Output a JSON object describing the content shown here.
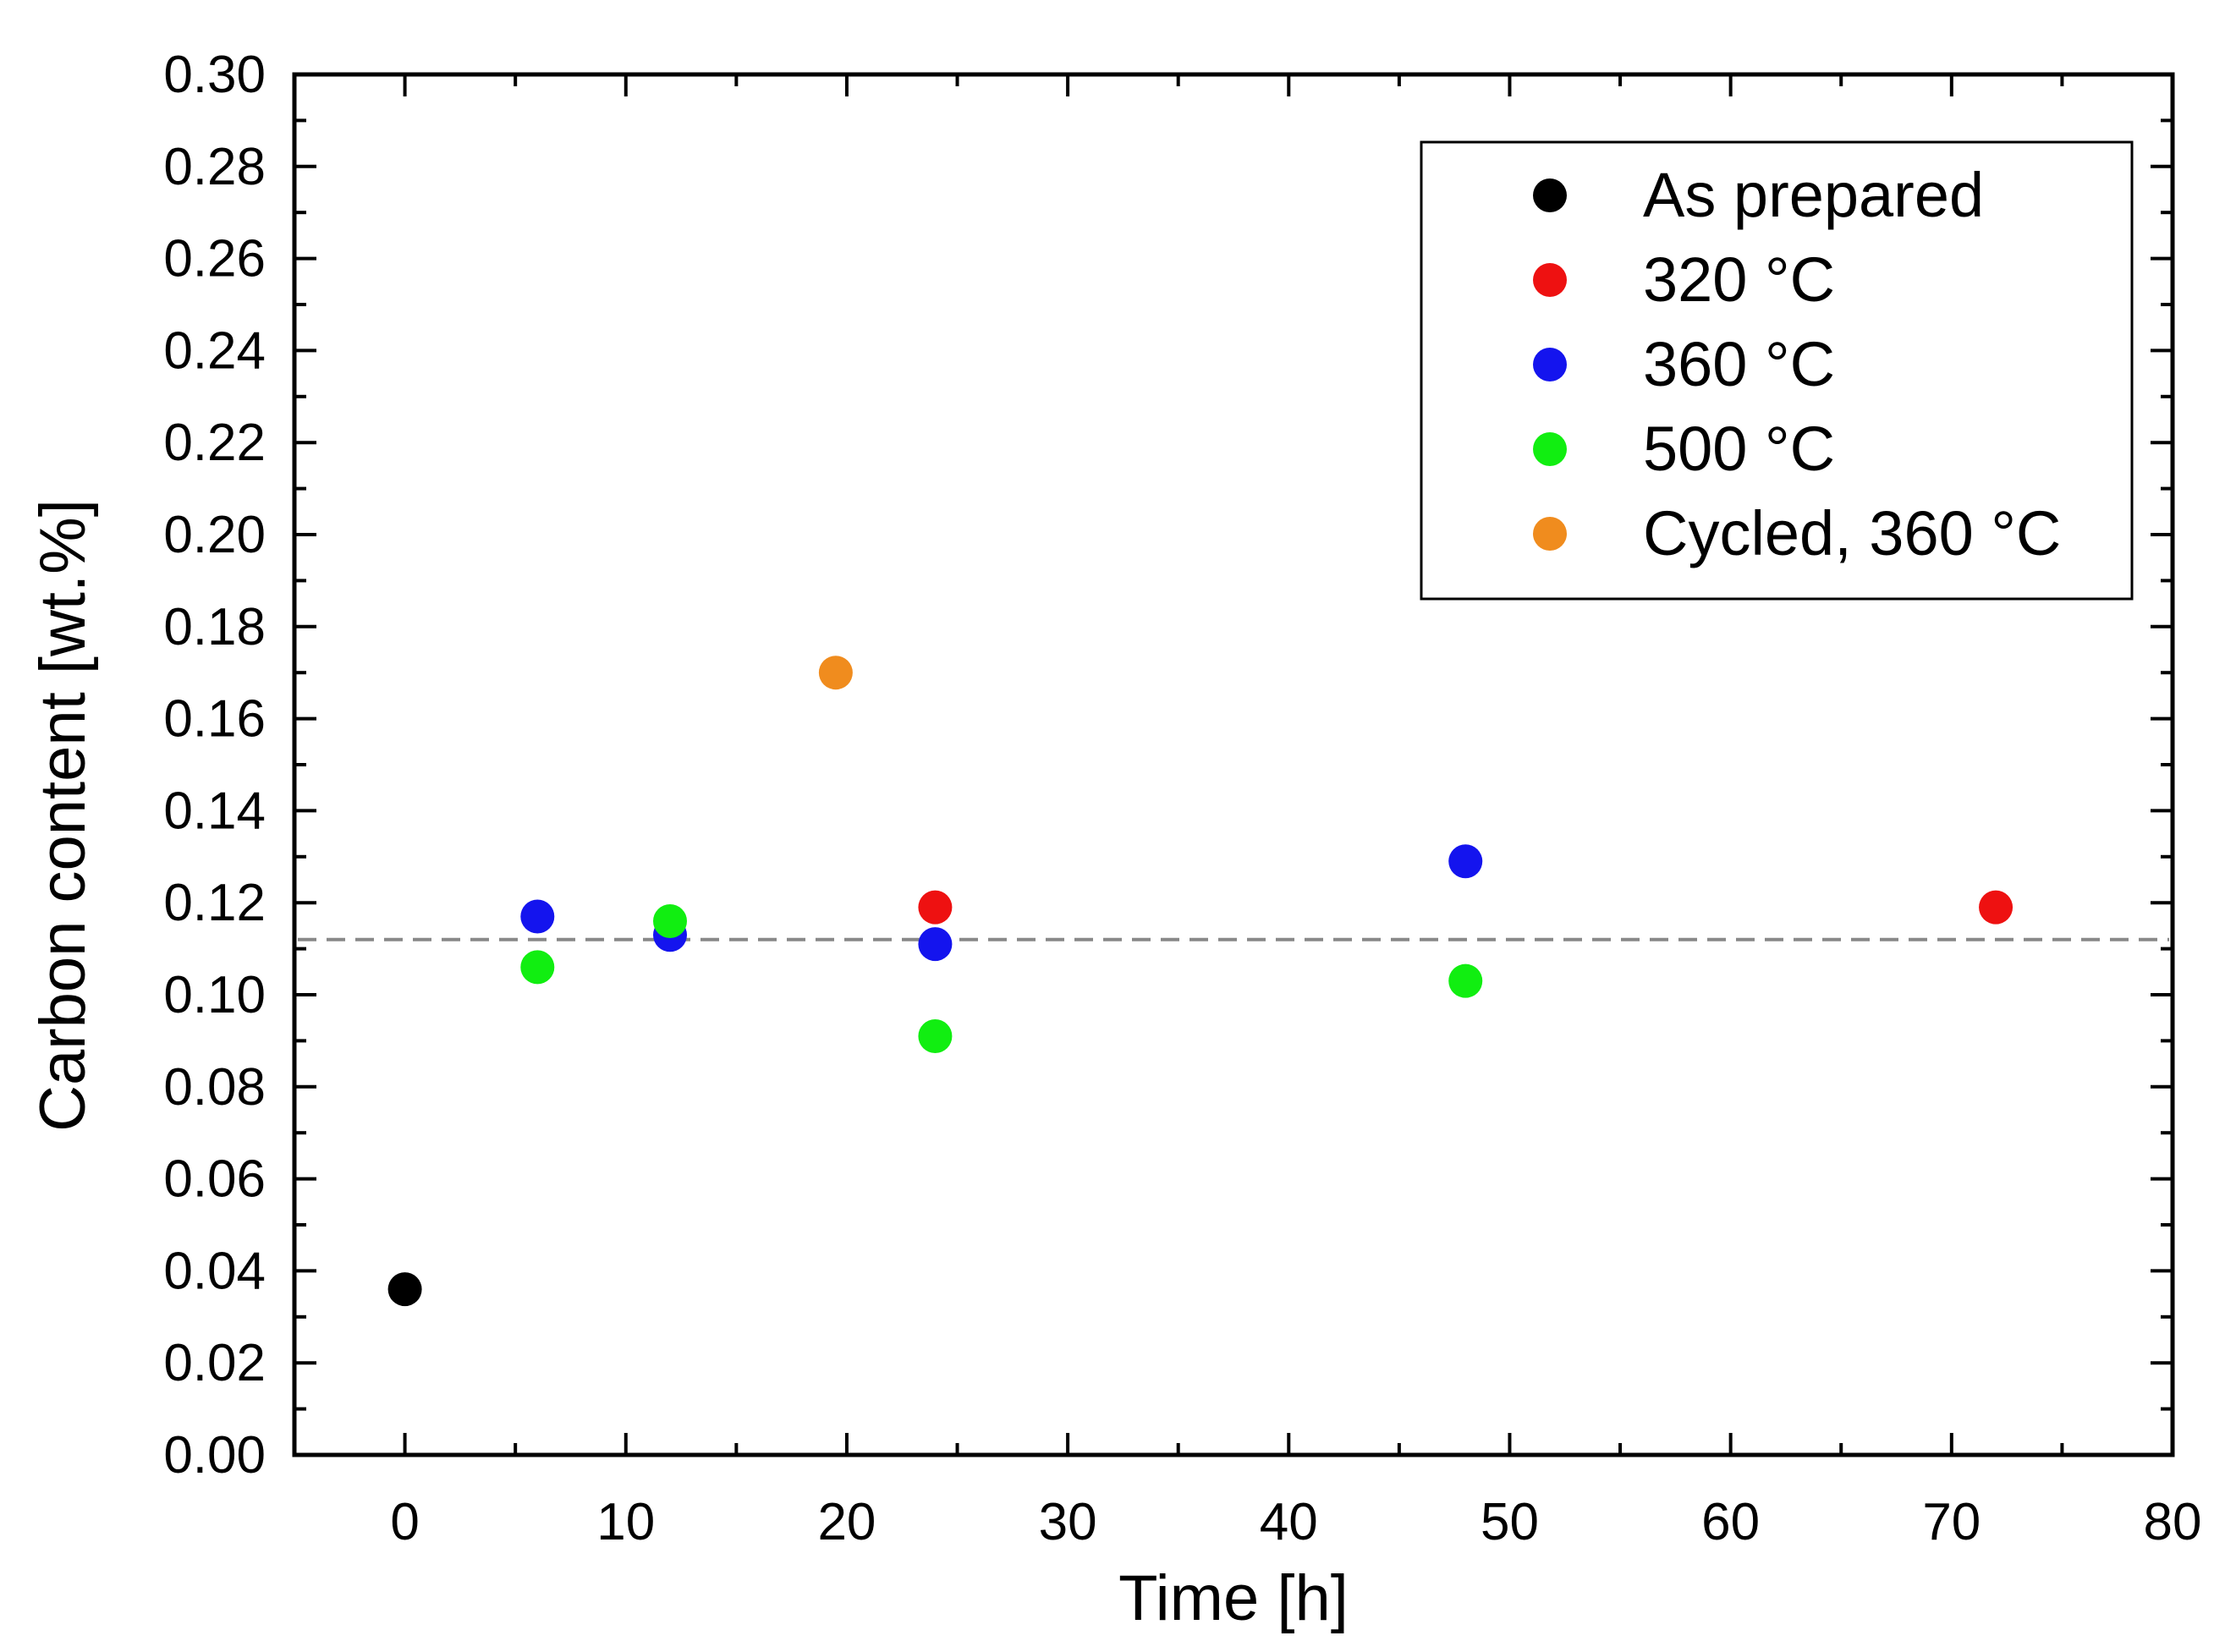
{
  "chart_data": {
    "type": "scatter",
    "title": "",
    "xlabel": "Time [h]",
    "ylabel": "Carbon content [wt.%]",
    "xlim": [
      -5,
      80
    ],
    "ylim": [
      0.0,
      0.3
    ],
    "x_ticks": [
      0,
      10,
      20,
      30,
      40,
      50,
      60,
      70,
      80
    ],
    "x_tick_labels": [
      "0",
      "10",
      "20",
      "30",
      "40",
      "50",
      "60",
      "70",
      "80"
    ],
    "y_ticks": [
      0.0,
      0.02,
      0.04,
      0.06,
      0.08,
      0.1,
      0.12,
      0.14,
      0.16,
      0.18,
      0.2,
      0.22,
      0.24,
      0.26,
      0.28,
      0.3
    ],
    "y_tick_labels": [
      "0.00",
      "0.02",
      "0.04",
      "0.06",
      "0.08",
      "0.10",
      "0.12",
      "0.14",
      "0.16",
      "0.18",
      "0.20",
      "0.22",
      "0.24",
      "0.26",
      "0.28",
      "0.30"
    ],
    "grid": false,
    "legend_position": "top-right",
    "reference_line": {
      "y": 0.112,
      "style": "dashed",
      "color": "#888888"
    },
    "series": [
      {
        "name": "As prepared",
        "color": "#000000",
        "points": [
          {
            "x": 0,
            "y": 0.036
          }
        ]
      },
      {
        "name": "320 °C",
        "color": "#ee1111",
        "points": [
          {
            "x": 24,
            "y": 0.119
          },
          {
            "x": 72,
            "y": 0.119
          }
        ]
      },
      {
        "name": "360 °C",
        "color": "#1414ee",
        "points": [
          {
            "x": 6,
            "y": 0.117
          },
          {
            "x": 12,
            "y": 0.113
          },
          {
            "x": 24,
            "y": 0.111
          },
          {
            "x": 48,
            "y": 0.129
          }
        ]
      },
      {
        "name": "500 °C",
        "color": "#11ee11",
        "points": [
          {
            "x": 6,
            "y": 0.106
          },
          {
            "x": 12,
            "y": 0.116
          },
          {
            "x": 24,
            "y": 0.091
          },
          {
            "x": 48,
            "y": 0.103
          }
        ]
      },
      {
        "name": "Cycled, 360 °C",
        "color": "#f08c1e",
        "points": [
          {
            "x": 19.5,
            "y": 0.17
          }
        ]
      }
    ]
  }
}
